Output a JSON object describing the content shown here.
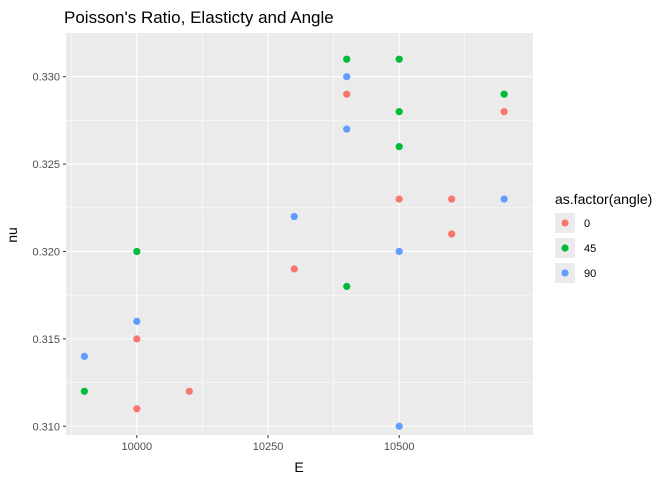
{
  "chart_data": {
    "type": "scatter",
    "title": "Poisson's Ratio, Elasticty and Angle",
    "xlabel": "E",
    "ylabel": "nu",
    "xlim": [
      9865,
      10755
    ],
    "ylim": [
      0.3095,
      0.3325
    ],
    "x_ticks": [
      {
        "value": 10000,
        "label": "10000"
      },
      {
        "value": 10250,
        "label": "10250"
      },
      {
        "value": 10500,
        "label": "10500"
      }
    ],
    "y_ticks": [
      {
        "value": 0.31,
        "label": "0.310"
      },
      {
        "value": 0.315,
        "label": "0.315"
      },
      {
        "value": 0.32,
        "label": "0.320"
      },
      {
        "value": 0.325,
        "label": "0.325"
      },
      {
        "value": 0.33,
        "label": "0.330"
      }
    ],
    "grid": true,
    "legend": {
      "title": "as.factor(angle)",
      "position": "right"
    },
    "series": [
      {
        "name": "0",
        "color": "#F8766D",
        "points": [
          [
            10000,
            0.315
          ],
          [
            10000,
            0.311
          ],
          [
            10100,
            0.312
          ],
          [
            10300,
            0.319
          ],
          [
            10400,
            0.329
          ],
          [
            10500,
            0.323
          ],
          [
            10600,
            0.323
          ],
          [
            10600,
            0.321
          ],
          [
            10700,
            0.328
          ]
        ]
      },
      {
        "name": "45",
        "color": "#00BA38",
        "points": [
          [
            9900,
            0.312
          ],
          [
            10000,
            0.32
          ],
          [
            10400,
            0.331
          ],
          [
            10400,
            0.318
          ],
          [
            10500,
            0.331
          ],
          [
            10500,
            0.328
          ],
          [
            10500,
            0.326
          ],
          [
            10700,
            0.329
          ]
        ]
      },
      {
        "name": "90",
        "color": "#619CFF",
        "points": [
          [
            9900,
            0.314
          ],
          [
            10000,
            0.316
          ],
          [
            10300,
            0.322
          ],
          [
            10400,
            0.33
          ],
          [
            10400,
            0.327
          ],
          [
            10500,
            0.32
          ],
          [
            10500,
            0.31
          ],
          [
            10700,
            0.323
          ]
        ]
      }
    ]
  }
}
